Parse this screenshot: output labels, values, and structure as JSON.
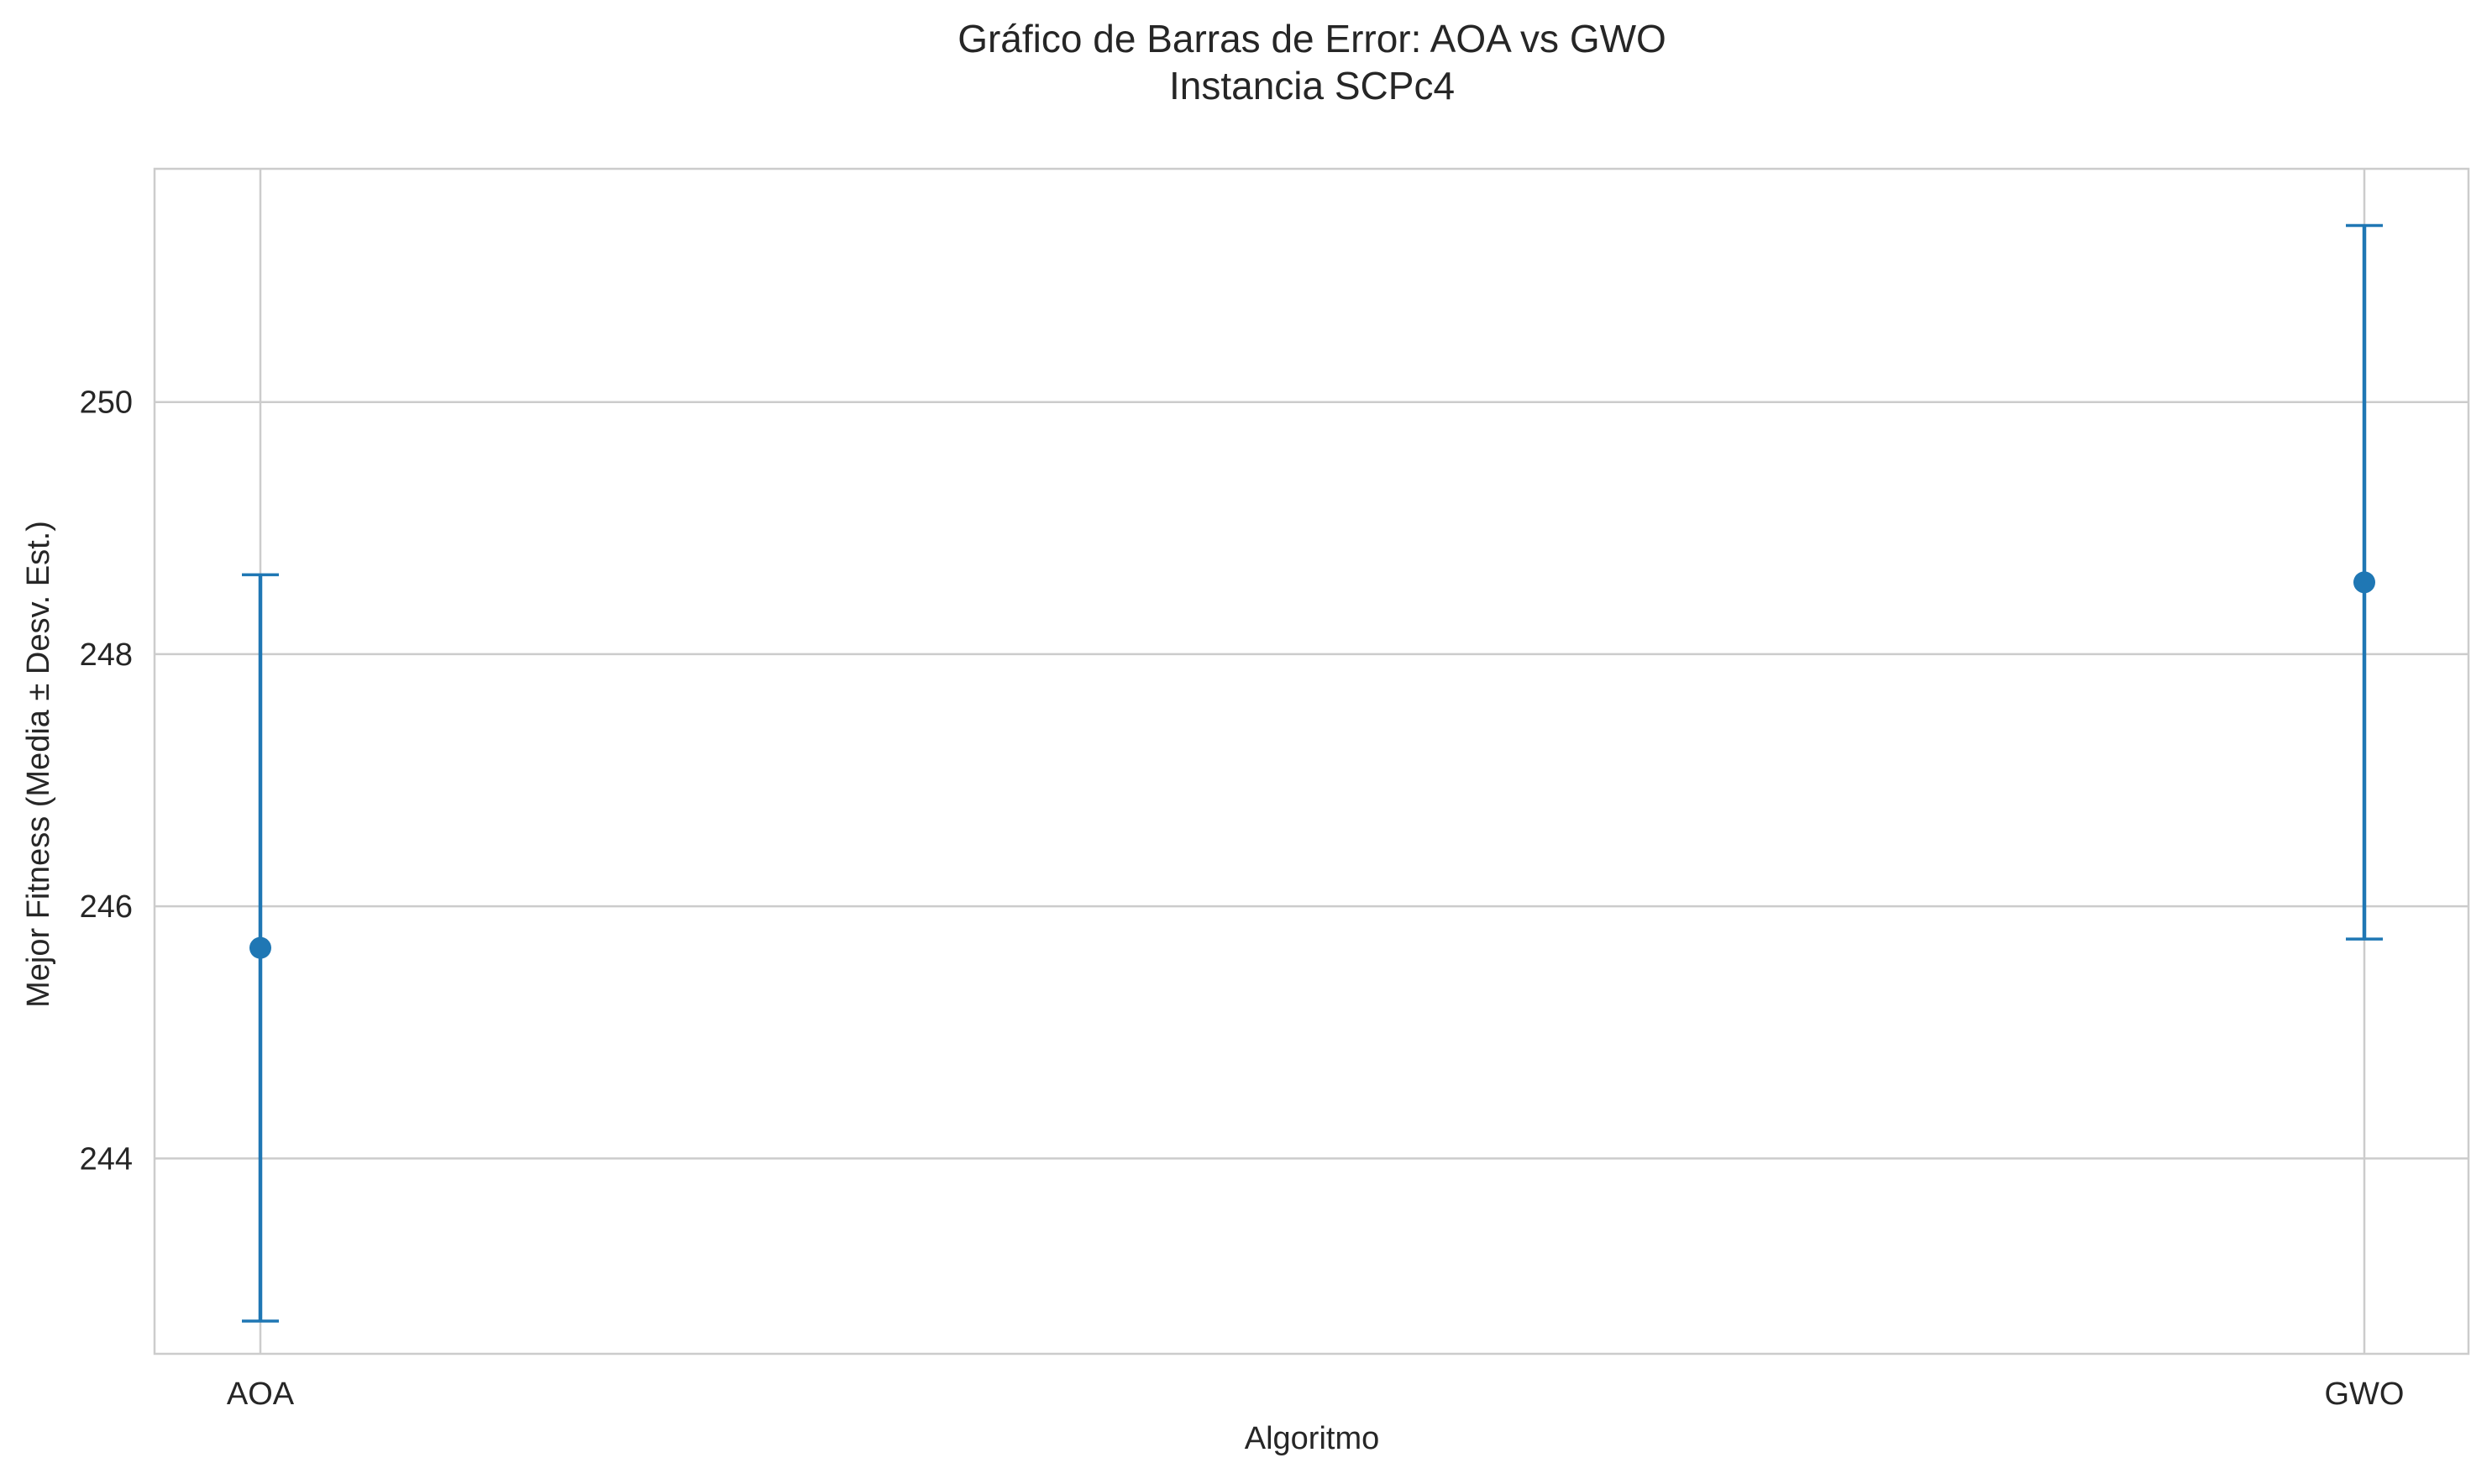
{
  "chart_data": {
    "type": "errorbar",
    "title": "Gráfico de Barras de Error: AOA vs GWO",
    "subtitle": "Instancia SCPc4",
    "xlabel": "Algoritmo",
    "ylabel": "Mejor Fitness (Media ± Desv. Est.)",
    "categories": [
      "AOA",
      "GWO"
    ],
    "series": [
      {
        "mean": [
          245.67,
          248.57
        ],
        "std": [
          2.96,
          2.83
        ]
      }
    ],
    "ylim": [
      242.45,
      251.85
    ],
    "yticks": [
      244,
      246,
      248,
      250
    ],
    "ytick_labels": [
      "244",
      "246",
      "248",
      "250"
    ],
    "grid": true,
    "colors": {
      "series": "#1f77b4",
      "grid": "#cccccc",
      "frame": "#cccccc",
      "text": "#262626"
    }
  }
}
